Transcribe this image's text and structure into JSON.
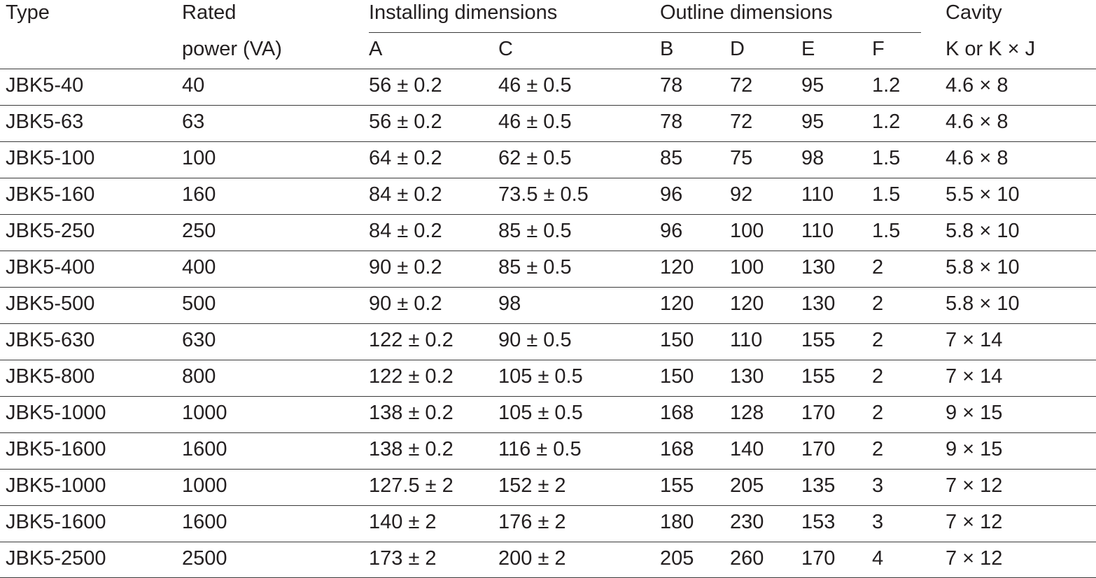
{
  "header": {
    "type": "Type",
    "rated": [
      "Rated",
      "power (VA)"
    ],
    "installing": "Installing dimensions",
    "outline": "Outline dimensions",
    "cavity": "Cavity",
    "columns": [
      "A",
      "C",
      "B",
      "D",
      "E",
      "F",
      "K or K × J"
    ]
  },
  "table": {
    "rows": [
      [
        "JBK5-40",
        "40",
        "56 ± 0.2",
        "46 ± 0.5",
        "78",
        "72",
        "95",
        "1.2",
        "4.6 × 8"
      ],
      [
        "JBK5-63",
        "63",
        "56 ± 0.2",
        "46 ± 0.5",
        "78",
        "72",
        "95",
        "1.2",
        "4.6 × 8"
      ],
      [
        "JBK5-100",
        "100",
        "64 ± 0.2",
        "62 ± 0.5",
        "85",
        "75",
        "98",
        "1.5",
        "4.6 × 8"
      ],
      [
        "JBK5-160",
        "160",
        "84 ± 0.2",
        "73.5 ± 0.5",
        "96",
        "92",
        "110",
        "1.5",
        "5.5 × 10"
      ],
      [
        "JBK5-250",
        "250",
        "84 ± 0.2",
        "85 ± 0.5",
        "96",
        "100",
        "110",
        "1.5",
        "5.8 × 10"
      ],
      [
        "JBK5-400",
        "400",
        "90 ± 0.2",
        "85 ± 0.5",
        "120",
        "100",
        "130",
        "2",
        "5.8 × 10"
      ],
      [
        "JBK5-500",
        "500",
        "90 ± 0.2",
        "98",
        "120",
        "120",
        "130",
        "2",
        "5.8 × 10"
      ],
      [
        "JBK5-630",
        "630",
        "122 ± 0.2",
        "90 ± 0.5",
        "150",
        "110",
        "155",
        "2",
        "7 × 14"
      ],
      [
        "JBK5-800",
        "800",
        "122 ± 0.2",
        "105 ± 0.5",
        "150",
        "130",
        "155",
        "2",
        "7 × 14"
      ],
      [
        "JBK5-1000",
        "1000",
        "138 ± 0.2",
        "105 ± 0.5",
        "168",
        "128",
        "170",
        "2",
        "9 × 15"
      ],
      [
        "JBK5-1600",
        "1600",
        "138 ± 0.2",
        "116 ± 0.5",
        "168",
        "140",
        "170",
        "2",
        "9 × 15"
      ],
      [
        "JBK5-1000",
        "1000",
        "127.5 ± 2",
        "152 ± 2",
        "155",
        "205",
        "135",
        "3",
        "7 × 12"
      ],
      [
        "JBK5-1600",
        "1600",
        "140 ± 2",
        "176 ± 2",
        "180",
        "230",
        "153",
        "3",
        "7 × 12"
      ],
      [
        "JBK5-2500",
        "2500",
        "173 ± 2",
        "200 ± 2",
        "205",
        "260",
        "170",
        "4",
        "7 × 12"
      ]
    ]
  }
}
